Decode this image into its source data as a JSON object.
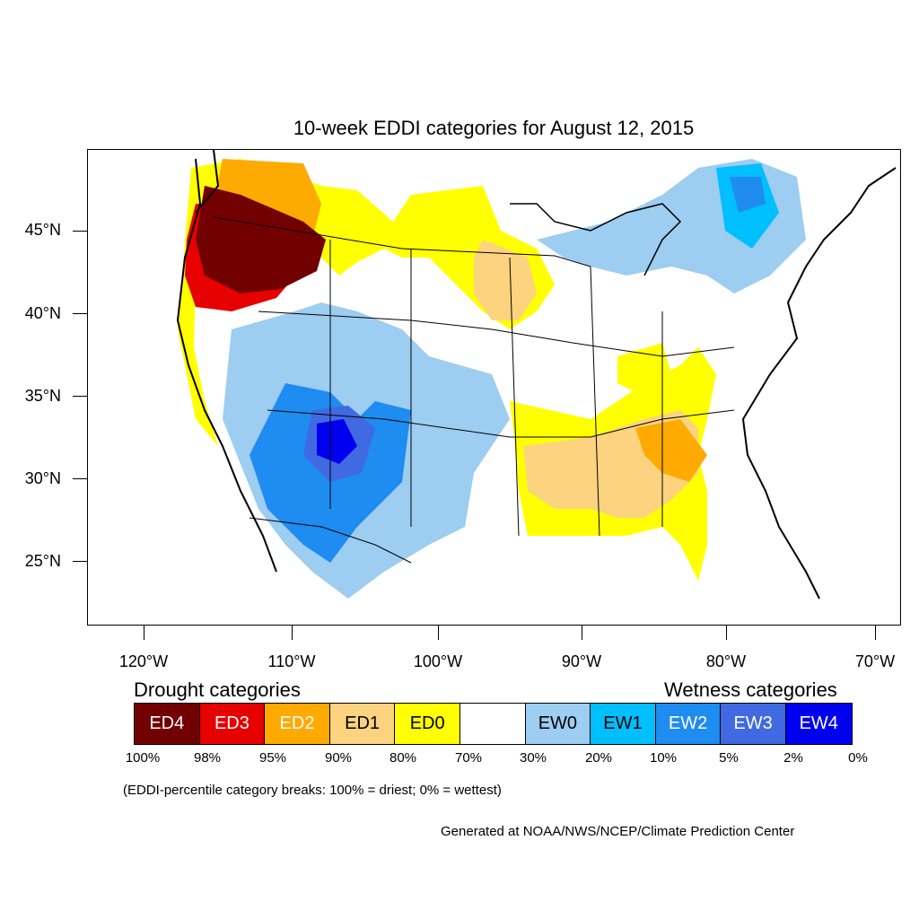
{
  "title": "10-week EDDI categories for August 12, 2015",
  "y_axis_labels": [
    "45°N",
    "40°N",
    "35°N",
    "30°N",
    "25°N"
  ],
  "x_axis_labels": [
    "120°W",
    "110°W",
    "100°W",
    "90°W",
    "80°W",
    "70°W"
  ],
  "legend": {
    "drought_heading": "Drought categories",
    "wetness_heading": "Wetness categories",
    "categories": [
      {
        "label": "ED4",
        "color": "#730000"
      },
      {
        "label": "ED3",
        "color": "#e60000"
      },
      {
        "label": "ED2",
        "color": "#ffaa00"
      },
      {
        "label": "ED1",
        "color": "#fcd37f"
      },
      {
        "label": "ED0",
        "color": "#ffff00"
      },
      {
        "label": "",
        "color": "#ffffff"
      },
      {
        "label": "EW0",
        "color": "#9dcdf0"
      },
      {
        "label": "EW1",
        "color": "#00bfff"
      },
      {
        "label": "EW2",
        "color": "#1e8cf0"
      },
      {
        "label": "EW3",
        "color": "#4169e1"
      },
      {
        "label": "EW4",
        "color": "#0000f0"
      }
    ],
    "percentiles": [
      "100%",
      "98%",
      "95%",
      "90%",
      "80%",
      "70%",
      "30%",
      "20%",
      "10%",
      "5%",
      "2%",
      "0%"
    ]
  },
  "note": "(EDDI-percentile category breaks: 100% = driest; 0% = wettest)",
  "credit": "Generated at NOAA/NWS/NCEP/Climate Prediction Center"
}
